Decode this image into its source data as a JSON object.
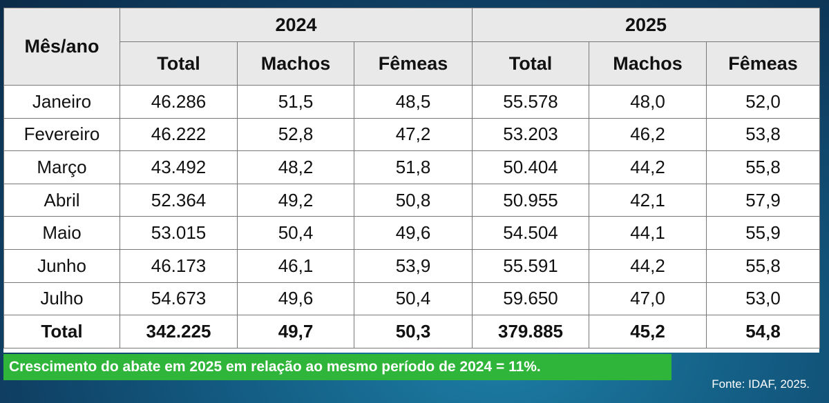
{
  "table": {
    "row_header": "Mês/ano",
    "years": [
      "2024",
      "2025"
    ],
    "columns": [
      "Total",
      "Machos",
      "Fêmeas",
      "Total",
      "Machos",
      "Fêmeas"
    ],
    "rows": [
      {
        "label": "Janeiro",
        "cells": [
          "46.286",
          "51,5",
          "48,5",
          "55.578",
          "48,0",
          "52,0"
        ]
      },
      {
        "label": "Fevereiro",
        "cells": [
          "46.222",
          "52,8",
          "47,2",
          "53.203",
          "46,2",
          "53,8"
        ]
      },
      {
        "label": "Março",
        "cells": [
          "43.492",
          "48,2",
          "51,8",
          "50.404",
          "44,2",
          "55,8"
        ]
      },
      {
        "label": "Abril",
        "cells": [
          "52.364",
          "49,2",
          "50,8",
          "50.955",
          "42,1",
          "57,9"
        ]
      },
      {
        "label": "Maio",
        "cells": [
          "53.015",
          "50,4",
          "49,6",
          "54.504",
          "44,1",
          "55,9"
        ]
      },
      {
        "label": "Junho",
        "cells": [
          "46.173",
          "46,1",
          "53,9",
          "55.591",
          "44,2",
          "55,8"
        ]
      },
      {
        "label": "Julho",
        "cells": [
          "54.673",
          "49,6",
          "50,4",
          "59.650",
          "47,0",
          "53,0"
        ]
      }
    ],
    "total": {
      "label": "Total",
      "cells": [
        "342.225",
        "49,7",
        "50,3",
        "379.885",
        "45,2",
        "54,8"
      ]
    }
  },
  "banner": {
    "text": "Crescimento do abate em 2025 em relação ao mesmo período de 2024 = 11%.",
    "color": "#2fb53a"
  },
  "source": "Fonte: IDAF, 2025."
}
